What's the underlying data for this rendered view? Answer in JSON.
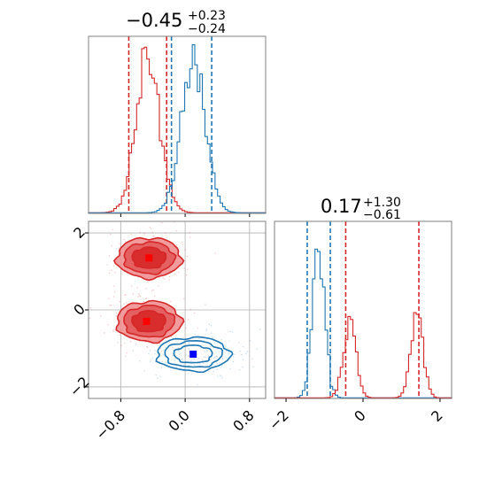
{
  "chart_data": {
    "type": "corner",
    "colors": {
      "red": "#d62728",
      "blue": "#1f77b4",
      "red_fill_dark": "#d62728",
      "red_fill_light": "#ef8a8b"
    },
    "panels": [
      {
        "id": "hist-param-1",
        "type": "histogram",
        "title": {
          "value": "−0.45",
          "sup": "+0.23",
          "sub": "−0.24"
        },
        "xlim": [
          -1.2,
          1.0
        ],
        "series": [
          {
            "name": "",
            "color": "#d62728",
            "center": -0.46,
            "sigma": 0.15,
            "peak": 1.0,
            "quantiles": [
              -0.7,
              -0.23
            ]
          },
          {
            "name": "",
            "color": "#1f77b4",
            "center": 0.1,
            "sigma": 0.15,
            "peak": 1.0,
            "quantiles": [
              -0.17,
              0.33
            ]
          }
        ]
      },
      {
        "id": "hist-param-2",
        "type": "histogram",
        "title": {
          "value": "0.17",
          "sup": "+1.30",
          "sub": "−0.61"
        },
        "xlim": [
          -2.3,
          2.3
        ],
        "xticks": [
          -2,
          0,
          2
        ],
        "xtick_labels": [
          "−2",
          "0",
          "2"
        ],
        "series": [
          {
            "name": "",
            "color": "#1f77b4",
            "components": [
              {
                "center": -1.15,
                "sigma": 0.16,
                "peak": 1.0
              }
            ],
            "quantiles": [
              -1.45,
              -0.85
            ]
          },
          {
            "name": "",
            "color": "#d62728",
            "components": [
              {
                "center": -0.35,
                "sigma": 0.16,
                "peak": 0.55
              },
              {
                "center": 1.4,
                "sigma": 0.16,
                "peak": 0.55
              }
            ],
            "quantiles": [
              -0.45,
              1.45
            ]
          }
        ]
      },
      {
        "id": "joint-param-1-2",
        "type": "contour",
        "xlim": [
          -1.2,
          1.0
        ],
        "ylim": [
          -2.3,
          2.3
        ],
        "xticks": [
          -0.8,
          0.0,
          0.8
        ],
        "xtick_labels": [
          "−0.8",
          "0.0",
          "0.8"
        ],
        "yticks": [
          -2,
          0,
          2
        ],
        "ytick_labels": [
          "−2",
          "0",
          "2"
        ],
        "series": [
          {
            "name": "",
            "color": "#d62728",
            "filled": true,
            "blobs": [
              {
                "cx": -0.45,
                "cy": 1.35,
                "sx": 0.23,
                "sy": 0.3
              },
              {
                "cx": -0.45,
                "cy": -0.3,
                "sx": 0.23,
                "sy": 0.3
              }
            ],
            "markers": [
              {
                "x": -0.45,
                "y": 1.35
              },
              {
                "x": -0.48,
                "y": -0.3
              }
            ]
          },
          {
            "name": "",
            "color": "#1f77b4",
            "filled": false,
            "blobs": [
              {
                "cx": 0.1,
                "cy": -1.15,
                "sx": 0.26,
                "sy": 0.25
              }
            ],
            "markers": [
              {
                "x": 0.1,
                "y": -1.15
              }
            ]
          }
        ]
      }
    ]
  }
}
